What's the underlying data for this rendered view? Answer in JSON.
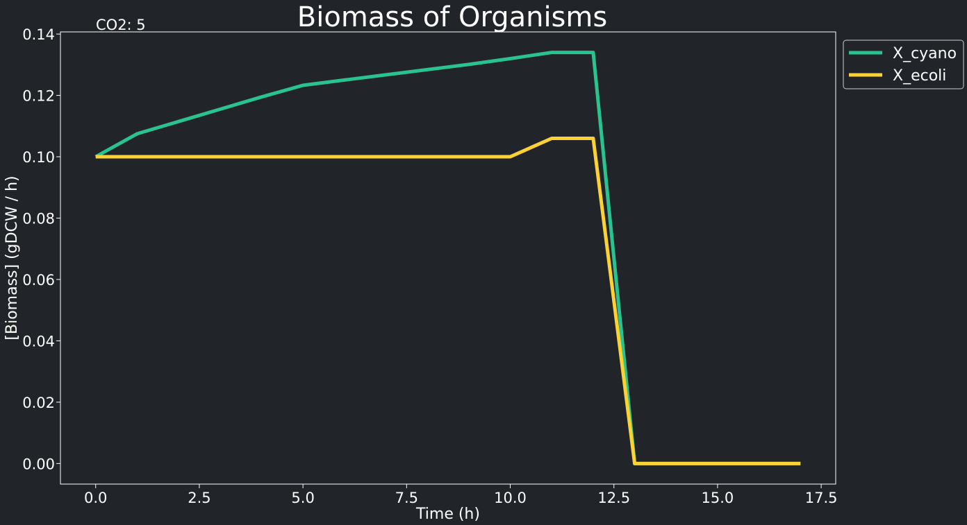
{
  "chart_data": {
    "type": "line",
    "title": "Biomass of Organisms",
    "annotation": "CO2: 5",
    "xlabel": "Time (h)",
    "ylabel": "[Biomass] (gDCW / h)",
    "xlim": [
      -0.85,
      17.85
    ],
    "ylim": [
      -0.0067,
      0.1407
    ],
    "xticks": [
      0.0,
      2.5,
      5.0,
      7.5,
      10.0,
      12.5,
      15.0,
      17.5
    ],
    "xtick_labels": [
      "0.0",
      "2.5",
      "5.0",
      "7.5",
      "10.0",
      "12.5",
      "15.0",
      "17.5"
    ],
    "yticks": [
      0.0,
      0.02,
      0.04,
      0.06,
      0.08,
      0.1,
      0.12,
      0.14
    ],
    "ytick_labels": [
      "0.00",
      "0.02",
      "0.04",
      "0.06",
      "0.08",
      "0.10",
      "0.12",
      "0.14"
    ],
    "grid": false,
    "legend_position": "outside-top-right",
    "x": [
      0,
      1,
      2,
      3,
      4,
      5,
      6,
      7,
      8,
      9,
      10,
      11,
      12,
      13,
      14,
      15,
      16,
      17
    ],
    "series": [
      {
        "name": "X_cyano",
        "color": "#2ac28f",
        "values": [
          0.1,
          0.1075,
          0.1115,
          0.1155,
          0.1195,
          0.1233,
          0.125,
          0.1267,
          0.1284,
          0.1301,
          0.132,
          0.134,
          0.134,
          0.0,
          0.0,
          0.0,
          0.0,
          0.0
        ]
      },
      {
        "name": "X_ecoli",
        "color": "#fbd234",
        "values": [
          0.1,
          0.1,
          0.1,
          0.1,
          0.1,
          0.1,
          0.1,
          0.1,
          0.1,
          0.1,
          0.1,
          0.106,
          0.106,
          0.0,
          0.0,
          0.0,
          0.0,
          0.0
        ]
      }
    ]
  }
}
